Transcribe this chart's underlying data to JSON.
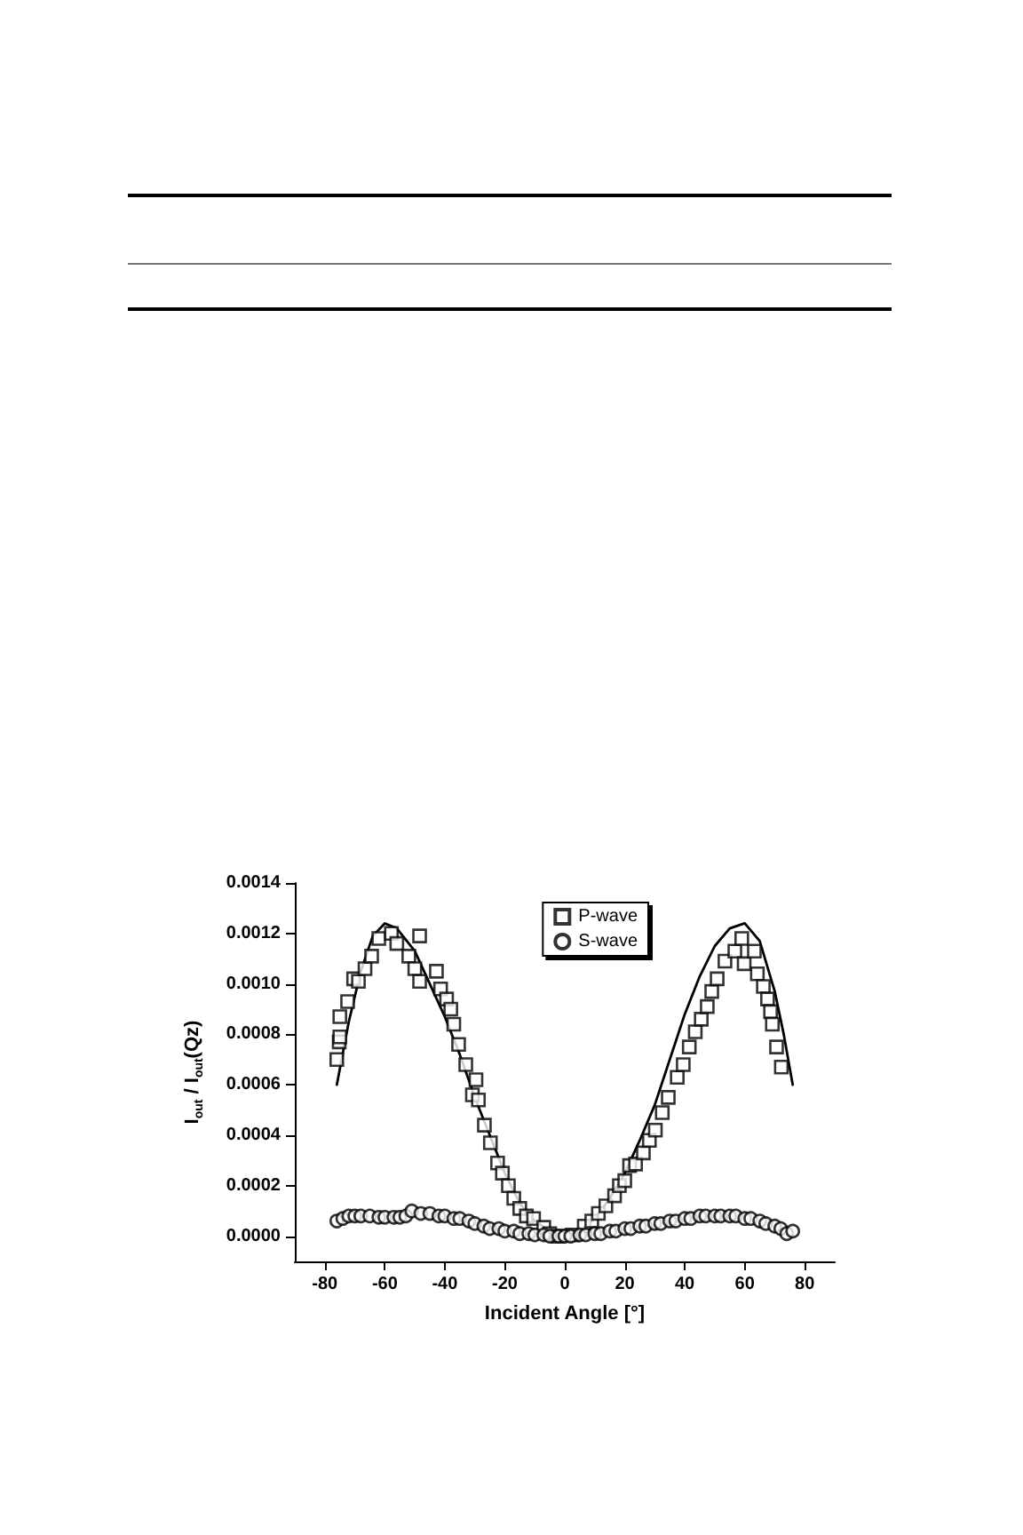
{
  "chart_data": {
    "type": "scatter",
    "xlabel": "Incident Angle [°]",
    "ylabel": "I$_{out}$ / I$_{out}$(Qz)",
    "xlim": [
      -90,
      90
    ],
    "xticks": [
      -80,
      -60,
      -40,
      -20,
      0,
      20,
      40,
      60,
      80
    ],
    "ylim": [
      -0.0001,
      0.0014
    ],
    "yticks": [
      {
        "value": 0,
        "label": "0.0000"
      },
      {
        "value": 0.0002,
        "label": "0.0002"
      },
      {
        "value": 0.0004,
        "label": "0.0004"
      },
      {
        "value": 0.0006,
        "label": "0.0006"
      },
      {
        "value": 0.0008,
        "label": "0.0008"
      },
      {
        "value": 0.001,
        "label": "0.0010"
      },
      {
        "value": 0.0012,
        "label": "0.0012"
      },
      {
        "value": 0.0014,
        "label": "0.0014"
      }
    ],
    "grid": false,
    "legend": "top right",
    "series": [
      {
        "name": "P-wave",
        "marker": "square",
        "color": "#000000",
        "x": [
          -76,
          -75.2,
          -75,
          -75,
          -72.4,
          -70.4,
          -68.8,
          -66.6,
          -64.4,
          -62,
          -57.8,
          -56,
          -52,
          -50,
          -48.4,
          -48.4,
          -42.8,
          -41.4,
          -39.4,
          -38,
          -37,
          -35.4,
          -33,
          -29.6,
          -30.8,
          -28.8,
          -26.8,
          -24.8,
          -22.4,
          -20.8,
          -18.8,
          -17,
          -15,
          -12.8,
          -10.4,
          -7,
          -5,
          -2.3,
          2.5,
          6.5,
          9,
          11.2,
          13.7,
          16.6,
          18.2,
          20,
          21.6,
          23.6,
          26.2,
          28.2,
          30.2,
          32.5,
          34.5,
          37.5,
          39.5,
          41.5,
          43.5,
          45.5,
          47.5,
          49,
          50.8,
          53.4,
          56.7,
          59,
          59.8,
          63.2,
          64.2,
          66.2,
          67.6,
          68.6,
          69.2,
          70.6,
          72.2
        ],
        "values": [
          0.0007,
          0.00077,
          0.00079,
          0.00087,
          0.00093,
          0.00102,
          0.00101,
          0.00106,
          0.00111,
          0.00118,
          0.0012,
          0.00116,
          0.00111,
          0.00106,
          0.00119,
          0.00101,
          0.00105,
          0.00098,
          0.00094,
          0.0009,
          0.00084,
          0.00076,
          0.00068,
          0.00062,
          0.00056,
          0.00054,
          0.00044,
          0.00037,
          0.00029,
          0.00025,
          0.0002,
          0.00015,
          0.00011,
          8e-05,
          7e-05,
          3.5e-05,
          1e-05,
          0,
          5e-06,
          4e-05,
          6e-05,
          9e-05,
          0.00012,
          0.00016,
          0.0002,
          0.00022,
          0.00028,
          0.000286,
          0.00033,
          0.00038,
          0.00042,
          0.00049,
          0.00055,
          0.00063,
          0.00068,
          0.00075,
          0.00081,
          0.00086,
          0.00091,
          0.00097,
          0.00102,
          0.00109,
          0.00113,
          0.00118,
          0.00108,
          0.00113,
          0.00104,
          0.00099,
          0.00094,
          0.00089,
          0.00084,
          0.00075,
          0.00067
        ]
      },
      {
        "name": "S-wave",
        "marker": "circle",
        "color": "#000000",
        "x": [
          -76,
          -74,
          -72,
          -70,
          -68,
          -65,
          -62,
          -60,
          -57,
          -55,
          -53,
          -51,
          -48,
          -45,
          -42,
          -40,
          -37,
          -35,
          -32,
          -30,
          -27,
          -25,
          -22,
          -20,
          -17,
          -15,
          -12,
          -10,
          -7,
          -5,
          -2,
          0,
          2,
          5,
          7,
          10,
          12,
          15,
          17,
          20,
          22,
          25,
          27,
          30,
          32,
          35,
          37,
          40,
          42,
          45,
          47,
          50,
          52,
          55,
          57,
          60,
          62,
          65,
          67,
          70,
          72,
          74,
          76
        ],
        "values": [
          6e-05,
          7e-05,
          8e-05,
          8e-05,
          8e-05,
          8e-05,
          7.5e-05,
          7.5e-05,
          7.5e-05,
          7.5e-05,
          8e-05,
          0.0001,
          9e-05,
          9e-05,
          8e-05,
          8e-05,
          7e-05,
          7e-05,
          6e-05,
          5e-05,
          4e-05,
          3e-05,
          3e-05,
          2e-05,
          2e-05,
          1e-05,
          1e-05,
          5e-06,
          5e-06,
          0,
          0,
          0,
          0,
          5e-06,
          5e-06,
          1e-05,
          1e-05,
          2e-05,
          2e-05,
          3e-05,
          3e-05,
          4e-05,
          4e-05,
          5e-05,
          5e-05,
          6e-05,
          6e-05,
          7e-05,
          7e-05,
          8e-05,
          8e-05,
          8e-05,
          8e-05,
          8e-05,
          8e-05,
          7e-05,
          7e-05,
          6e-05,
          5e-05,
          4e-05,
          3e-05,
          1e-05,
          2e-05
        ]
      },
      {
        "type": "line",
        "marker": "none",
        "line_style": "solid",
        "color": "#000000",
        "x": [
          -76,
          -72,
          -68,
          -64,
          -60,
          -56,
          -50,
          -45,
          -40,
          -35,
          -30,
          -25,
          -20,
          -15,
          -10,
          -5,
          0,
          5,
          10,
          15,
          20,
          25,
          30,
          35,
          40,
          45,
          50,
          55,
          60,
          65,
          70,
          73,
          76
        ],
        "values": [
          0.0006,
          0.00085,
          0.00105,
          0.00119,
          0.00124,
          0.00122,
          0.00113,
          0.001,
          0.00087,
          0.00072,
          0.00055,
          0.0004,
          0.00025,
          0.00013,
          6e-05,
          2e-05,
          0,
          2e-05,
          7e-05,
          0.00015,
          0.00025,
          0.00038,
          0.00052,
          0.0007,
          0.00088,
          0.00103,
          0.00115,
          0.00122,
          0.00124,
          0.00117,
          0.00097,
          0.0008,
          0.0006
        ]
      }
    ]
  }
}
